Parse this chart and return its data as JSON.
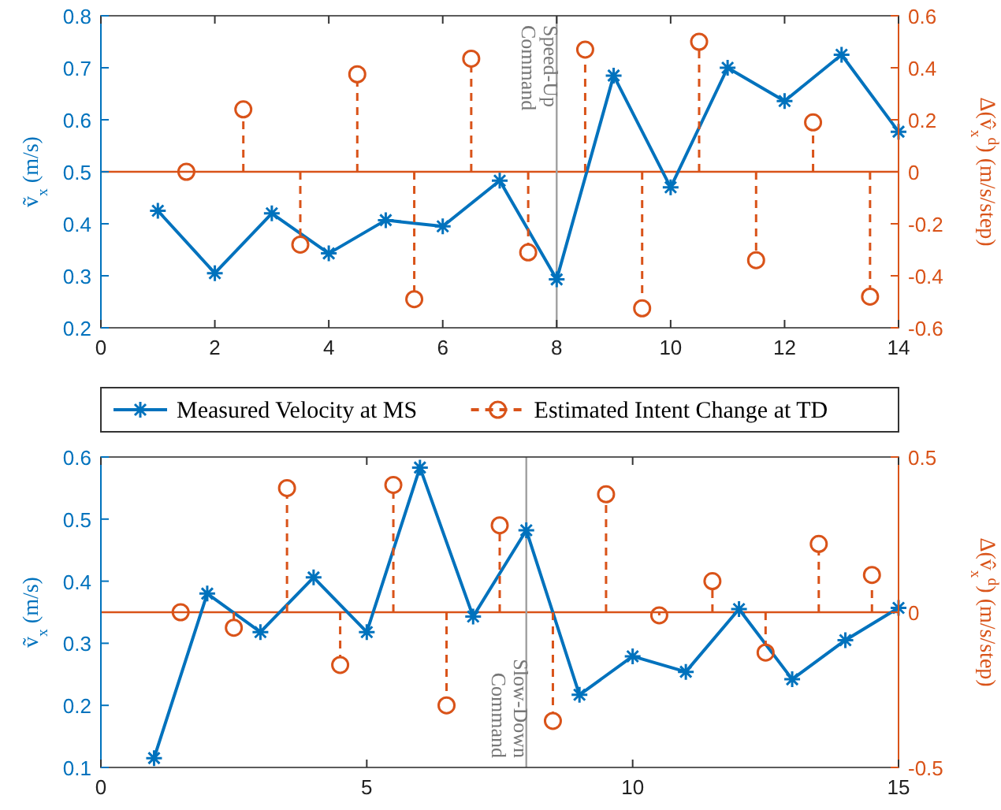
{
  "chart_data": [
    {
      "type": "line",
      "xlabel": null,
      "ylabel": "ṽ$_{x}$ (m/s)",
      "y2label": "Δ(v̂$_{x}$$^{d}$) (m/s/step)",
      "xlim": [
        0,
        14
      ],
      "xticks": [
        0,
        2,
        4,
        6,
        8,
        10,
        12,
        14
      ],
      "ylim": [
        0.2,
        0.8
      ],
      "yticks": [
        0.2,
        0.3,
        0.4,
        0.5,
        0.6,
        0.7,
        0.8
      ],
      "y2lim": [
        -0.6,
        0.6
      ],
      "y2ticks": [
        -0.6,
        -0.4,
        -0.2,
        0,
        0.2,
        0.4,
        0.6
      ],
      "legend": false,
      "ref_lines": [
        {
          "axis": "y2",
          "value": 0,
          "label": null,
          "color": "#d95319"
        },
        {
          "axis": "x",
          "value": 8,
          "label": "Speed-Up Command",
          "color": "#a0a0a0"
        }
      ],
      "series": [
        {
          "color": "#0072bd",
          "marker": "cross",
          "line_style": "solid",
          "x": [
            1,
            2,
            3,
            4,
            5,
            6,
            7,
            8,
            9,
            10,
            11,
            12,
            13,
            14
          ],
          "values": [
            0.425,
            0.305,
            0.42,
            0.343,
            0.407,
            0.395,
            0.483,
            0.293,
            0.685,
            0.47,
            0.7,
            0.636,
            0.725,
            0.577
          ]
        },
        {
          "type": "lollipop",
          "axis": "y2",
          "color": "#d95319",
          "marker": "circle",
          "line_style": "dashed",
          "x": [
            1.5,
            2.5,
            3.5,
            4.5,
            5.5,
            6.5,
            7.5,
            8.5,
            9.5,
            10.5,
            11.5,
            12.5,
            13.5
          ],
          "values": [
            0,
            0.24,
            -0.28,
            0.375,
            -0.49,
            0.435,
            -0.31,
            0.47,
            -0.525,
            0.5,
            -0.34,
            0.19,
            -0.48
          ]
        }
      ]
    },
    {
      "type": "line",
      "ylabel": "ṽ$_{x}$ (m/s)",
      "y2label": "Δ(v̂$_{x}$$^{d}$) (m/s/step)",
      "xlim": [
        0,
        15
      ],
      "xticks": [
        0,
        5,
        10,
        15
      ],
      "ylim": [
        0.1,
        0.6
      ],
      "yticks": [
        0.1,
        0.2,
        0.3,
        0.4,
        0.5,
        0.6
      ],
      "y2lim": [
        -0.5,
        0.5
      ],
      "y2ticks": [
        -0.5,
        0,
        0.5
      ],
      "legend": "top",
      "ref_lines": [
        {
          "axis": "y2",
          "value": 0,
          "label": null,
          "color": "#d95319"
        },
        {
          "axis": "x",
          "value": 8,
          "label": "Slow-Down Command",
          "color": "#a0a0a0"
        }
      ],
      "series": [
        {
          "name": "Measured Velocity at MS",
          "color": "#0072bd",
          "marker": "cross",
          "line_style": "solid",
          "x": [
            1,
            2,
            3,
            4,
            5,
            6,
            7,
            8,
            9,
            10,
            11,
            12,
            13,
            14,
            15
          ],
          "values": [
            0.115,
            0.38,
            0.318,
            0.406,
            0.318,
            0.583,
            0.343,
            0.482,
            0.217,
            0.279,
            0.254,
            0.355,
            0.242,
            0.305,
            0.357
          ]
        },
        {
          "type": "lollipop",
          "axis": "y2",
          "name": "Estimated Intent Change at TD",
          "color": "#d95319",
          "marker": "circle",
          "line_style": "dashed",
          "x": [
            1.5,
            2.5,
            3.5,
            4.5,
            5.5,
            6.5,
            7.5,
            8.5,
            9.5,
            10.5,
            11.5,
            12.5,
            13.5,
            14.5
          ],
          "values": [
            0,
            -0.05,
            0.4,
            -0.17,
            0.41,
            -0.3,
            0.28,
            -0.35,
            0.38,
            -0.01,
            0.1,
            -0.13,
            0.22,
            0.12
          ]
        }
      ]
    }
  ]
}
